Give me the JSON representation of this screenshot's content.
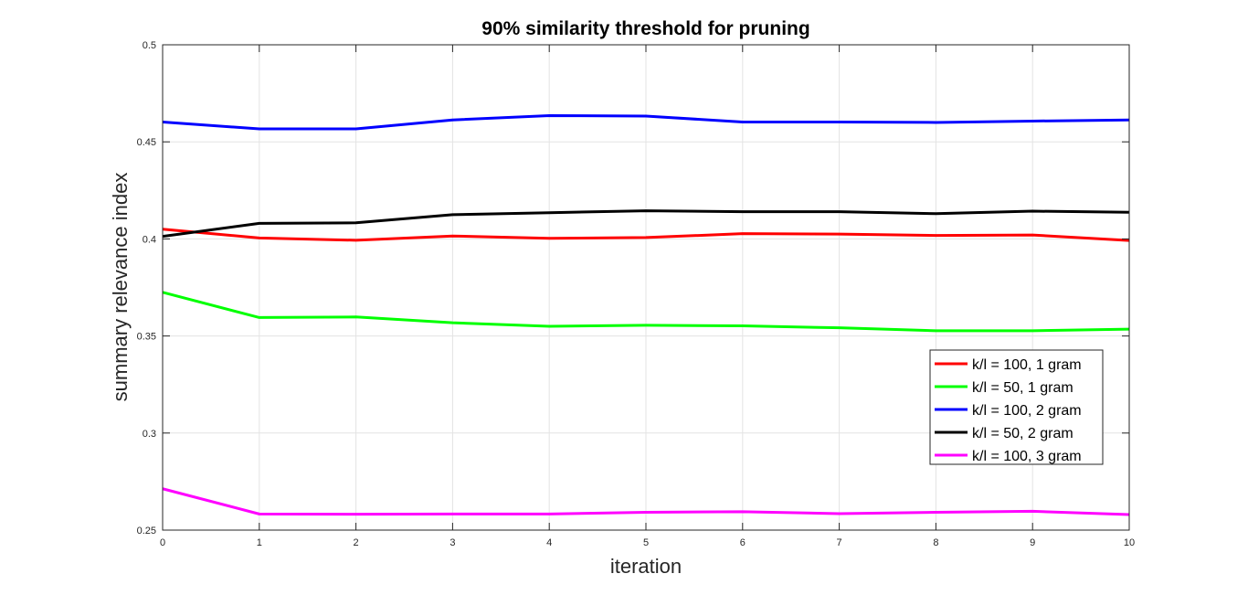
{
  "chart_data": {
    "type": "line",
    "title": "90% similarity threshold for pruning",
    "xlabel": "iteration",
    "ylabel": "summary relevance index",
    "xlim": [
      0,
      10
    ],
    "ylim": [
      0.25,
      0.5
    ],
    "xticks": [
      "0",
      "1",
      "2",
      "3",
      "4",
      "5",
      "6",
      "7",
      "8",
      "9",
      "10"
    ],
    "yticks": [
      "0.25",
      "0.3",
      "0.35",
      "0.4",
      "0.45",
      "0.5"
    ],
    "grid": true,
    "legend_position": "right",
    "x": [
      0,
      1,
      2,
      3,
      4,
      5,
      6,
      7,
      8,
      9,
      10
    ],
    "series": [
      {
        "name": "k/l = 100, 1 gram",
        "color": "#ff0000",
        "values": [
          0.405,
          0.4005,
          0.3993,
          0.4015,
          0.4003,
          0.4007,
          0.4027,
          0.4025,
          0.4018,
          0.402,
          0.3992
        ]
      },
      {
        "name": "k/l = 50, 1 gram",
        "color": "#00ff00",
        "values": [
          0.3725,
          0.3595,
          0.3598,
          0.3568,
          0.355,
          0.3555,
          0.3552,
          0.3542,
          0.3527,
          0.3527,
          0.3535
        ]
      },
      {
        "name": "k/l = 100, 2 gram",
        "color": "#0000ff",
        "values": [
          0.4602,
          0.4567,
          0.4567,
          0.4613,
          0.4635,
          0.4633,
          0.4602,
          0.4602,
          0.46,
          0.4607,
          0.4613
        ]
      },
      {
        "name": "k/l = 50, 2 gram",
        "color": "#000000",
        "values": [
          0.4013,
          0.408,
          0.4083,
          0.4125,
          0.4135,
          0.4145,
          0.414,
          0.414,
          0.413,
          0.4143,
          0.4137
        ]
      },
      {
        "name": "k/l = 100, 3 gram",
        "color": "#ff00ff",
        "values": [
          0.2713,
          0.2583,
          0.2582,
          0.2583,
          0.2583,
          0.2592,
          0.2595,
          0.2585,
          0.2592,
          0.2597,
          0.258
        ]
      }
    ]
  }
}
